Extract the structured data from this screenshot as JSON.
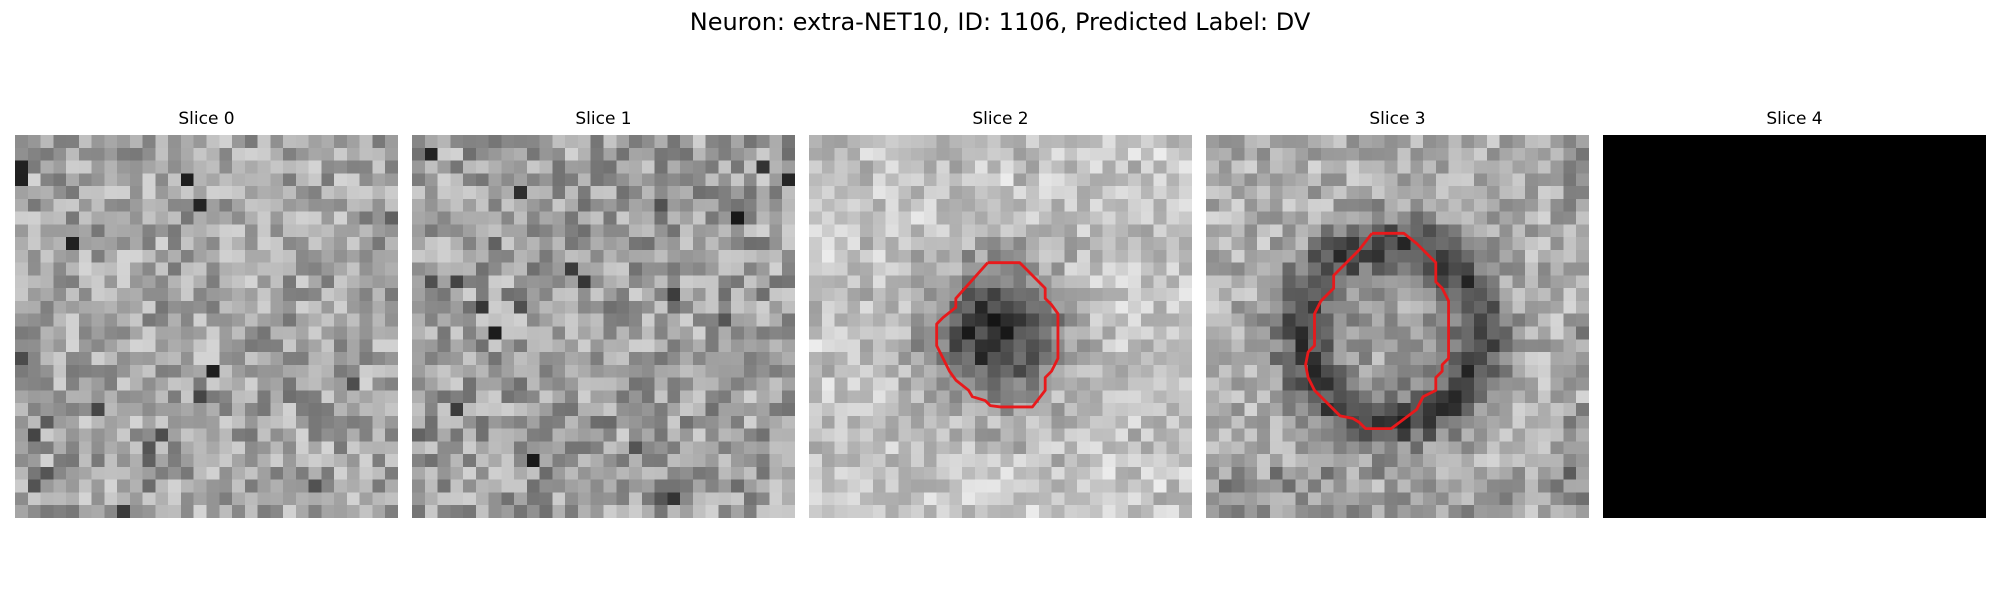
{
  "figure": {
    "title": "Neuron: extra-NET10, ID: 1106, Predicted Label: DV"
  },
  "colors": {
    "contour": "#e8191b",
    "background": "#ffffff",
    "empty_slice": "#000000"
  },
  "grid_size": 30,
  "slices": [
    {
      "title": "Slice 0",
      "has_contour": false,
      "blank": false,
      "pattern": "uniform-noise",
      "seed": 11,
      "base": 165,
      "spread": 95
    },
    {
      "title": "Slice 1",
      "has_contour": false,
      "blank": false,
      "pattern": "uniform-noise",
      "seed": 23,
      "base": 160,
      "spread": 100
    },
    {
      "title": "Slice 2",
      "has_contour": true,
      "blank": false,
      "pattern": "dark-blob",
      "seed": 37,
      "base": 195,
      "spread": 70
    },
    {
      "title": "Slice 3",
      "has_contour": true,
      "blank": false,
      "pattern": "dark-ring",
      "seed": 53,
      "base": 175,
      "spread": 80
    },
    {
      "title": "Slice 4",
      "has_contour": false,
      "blank": true,
      "pattern": "black",
      "seed": 0,
      "base": 0,
      "spread": 0
    }
  ]
}
